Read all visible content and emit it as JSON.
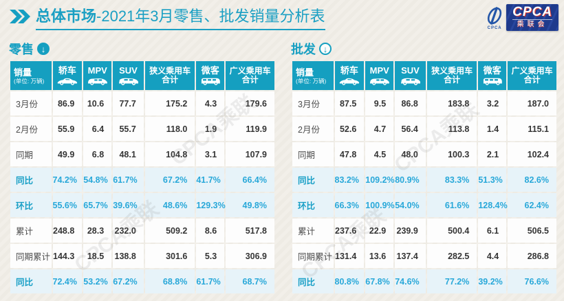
{
  "title": {
    "bold": "总体市场",
    "rest": "-2021年3月零售、批发销量分析表"
  },
  "logo": {
    "en": "CPCA",
    "cn": "乘联会",
    "swoosh_caption": "CPCA"
  },
  "watermark": "CPCA乘联",
  "colors": {
    "teal": "#159fc0",
    "highlight_row_bg": "#e7f3f9",
    "percent_text": "#29a8d9",
    "title_text": "#1a9fc3",
    "logo_navy": "#1e3a8c",
    "logo_red": "#d93a30",
    "page_bg": "#f1eee8"
  },
  "columns": [
    {
      "label": "销量",
      "sub": "(单位: 万辆)"
    },
    {
      "label": "轿车",
      "icon": "sedan-icon"
    },
    {
      "label": "MPV",
      "icon": "mpv-icon"
    },
    {
      "label": "SUV",
      "icon": "suv-icon"
    },
    {
      "label": "狭义乘用车",
      "label2": "合计"
    },
    {
      "label": "微客",
      "icon": "microvan-icon"
    },
    {
      "label": "广义乘用车",
      "label2": "合计"
    }
  ],
  "chart_data": [
    {
      "type": "table",
      "name": "零售",
      "arrow_icon_style": "filled",
      "rows": [
        {
          "label": "3月份",
          "highlight": false,
          "values": [
            "86.9",
            "10.6",
            "77.7",
            "175.2",
            "4.3",
            "179.6"
          ]
        },
        {
          "label": "2月份",
          "highlight": false,
          "values": [
            "55.9",
            "6.4",
            "55.7",
            "118.0",
            "1.9",
            "119.9"
          ]
        },
        {
          "label": "同期",
          "highlight": false,
          "values": [
            "49.9",
            "6.8",
            "48.1",
            "104.8",
            "3.1",
            "107.9"
          ]
        },
        {
          "label": "同比",
          "highlight": true,
          "values": [
            "74.2%",
            "54.8%",
            "61.7%",
            "67.2%",
            "41.7%",
            "66.4%"
          ]
        },
        {
          "label": "环比",
          "highlight": true,
          "values": [
            "55.6%",
            "65.7%",
            "39.6%",
            "48.6%",
            "129.3%",
            "49.8%"
          ]
        },
        {
          "label": "累计",
          "highlight": false,
          "values": [
            "248.8",
            "28.3",
            "232.0",
            "509.2",
            "8.6",
            "517.8"
          ]
        },
        {
          "label": "同期累计",
          "highlight": false,
          "values": [
            "144.3",
            "18.5",
            "138.8",
            "301.6",
            "5.3",
            "306.9"
          ]
        },
        {
          "label": "同比",
          "highlight": true,
          "values": [
            "72.4%",
            "53.2%",
            "67.2%",
            "68.8%",
            "61.7%",
            "68.7%"
          ]
        }
      ]
    },
    {
      "type": "table",
      "name": "批发",
      "arrow_icon_style": "outline",
      "rows": [
        {
          "label": "3月份",
          "highlight": false,
          "values": [
            "87.5",
            "9.5",
            "86.8",
            "183.8",
            "3.2",
            "187.0"
          ]
        },
        {
          "label": "2月份",
          "highlight": false,
          "values": [
            "52.6",
            "4.7",
            "56.4",
            "113.8",
            "1.4",
            "115.1"
          ]
        },
        {
          "label": "同期",
          "highlight": false,
          "values": [
            "47.8",
            "4.5",
            "48.0",
            "100.3",
            "2.1",
            "102.4"
          ]
        },
        {
          "label": "同比",
          "highlight": true,
          "values": [
            "83.2%",
            "109.2%",
            "80.9%",
            "83.3%",
            "51.3%",
            "82.6%"
          ]
        },
        {
          "label": "环比",
          "highlight": true,
          "values": [
            "66.3%",
            "100.9%",
            "54.0%",
            "61.6%",
            "128.4%",
            "62.4%"
          ]
        },
        {
          "label": "累计",
          "highlight": false,
          "values": [
            "237.6",
            "22.9",
            "239.9",
            "500.4",
            "6.1",
            "506.5"
          ]
        },
        {
          "label": "同期累计",
          "highlight": false,
          "values": [
            "131.4",
            "13.6",
            "137.4",
            "282.5",
            "4.4",
            "286.8"
          ]
        },
        {
          "label": "同比",
          "highlight": true,
          "values": [
            "80.8%",
            "67.8%",
            "74.6%",
            "77.2%",
            "39.2%",
            "76.6%"
          ]
        }
      ]
    }
  ]
}
